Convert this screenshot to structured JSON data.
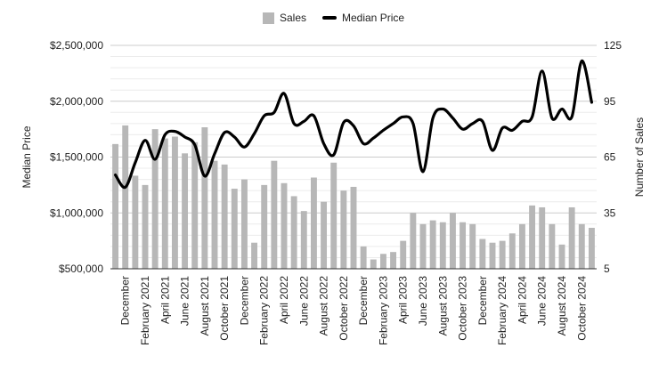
{
  "chart_data": {
    "type": "bar+line",
    "legend": {
      "position": "top",
      "entries": [
        "Sales",
        "Median Price"
      ]
    },
    "colors": {
      "sales": "#b7b7b7",
      "median_price": "#000000",
      "grid": "#d9d9d9"
    },
    "y_left": {
      "label": "Median Price",
      "range": [
        500000,
        2500000
      ],
      "ticks": [
        "$500,000",
        "$1,000,000",
        "$1,500,000",
        "$2,000,000",
        "$2,500,000"
      ],
      "tick_values": [
        500000,
        1000000,
        1500000,
        2000000,
        2500000
      ]
    },
    "y_right": {
      "label": "Number of Sales",
      "range": [
        5,
        125
      ],
      "ticks": [
        "5",
        "35",
        "65",
        "95",
        "125"
      ],
      "tick_values": [
        5,
        35,
        65,
        95,
        125
      ]
    },
    "x_tick_labels": [
      {
        "index": 1,
        "label": "December"
      },
      {
        "index": 3,
        "label": "February  2021"
      },
      {
        "index": 5,
        "label": "April 2021"
      },
      {
        "index": 7,
        "label": "June  2021"
      },
      {
        "index": 9,
        "label": "August  2021"
      },
      {
        "index": 11,
        "label": "October 2021"
      },
      {
        "index": 13,
        "label": "December"
      },
      {
        "index": 15,
        "label": "February 2022"
      },
      {
        "index": 17,
        "label": "April 2022"
      },
      {
        "index": 19,
        "label": "June  2022"
      },
      {
        "index": 21,
        "label": "August 2022"
      },
      {
        "index": 23,
        "label": "October 2022"
      },
      {
        "index": 25,
        "label": "December"
      },
      {
        "index": 27,
        "label": "February 2023"
      },
      {
        "index": 29,
        "label": "April 2023"
      },
      {
        "index": 31,
        "label": "June 2023"
      },
      {
        "index": 33,
        "label": "August 2023"
      },
      {
        "index": 35,
        "label": "October 2023"
      },
      {
        "index": 37,
        "label": "December"
      },
      {
        "index": 39,
        "label": "February 2024"
      },
      {
        "index": 41,
        "label": "April 2024"
      },
      {
        "index": 43,
        "label": "June 2024"
      },
      {
        "index": 45,
        "label": "August 2024"
      },
      {
        "index": 47,
        "label": "October 2024"
      }
    ],
    "series": [
      {
        "name": "Sales",
        "type": "bar",
        "axis": "right",
        "values": [
          72,
          82,
          55,
          50,
          80,
          75,
          76,
          67,
          73,
          81,
          63,
          61,
          48,
          53,
          19,
          50,
          63,
          51,
          44,
          36,
          54,
          41,
          62,
          47,
          49,
          17,
          10,
          13,
          14,
          20,
          35,
          29,
          31,
          30,
          35,
          30,
          29,
          21,
          19,
          20,
          24,
          29,
          39,
          38,
          29,
          18,
          38,
          29,
          27
        ]
      },
      {
        "name": "Median Price",
        "type": "line",
        "axis": "left",
        "values": [
          1340000,
          1230000,
          1450000,
          1650000,
          1480000,
          1700000,
          1730000,
          1680000,
          1610000,
          1330000,
          1530000,
          1720000,
          1680000,
          1590000,
          1710000,
          1870000,
          1900000,
          2070000,
          1800000,
          1820000,
          1870000,
          1620000,
          1520000,
          1810000,
          1780000,
          1620000,
          1670000,
          1740000,
          1800000,
          1860000,
          1800000,
          1370000,
          1850000,
          1930000,
          1850000,
          1750000,
          1800000,
          1820000,
          1560000,
          1760000,
          1740000,
          1820000,
          1860000,
          2270000,
          1850000,
          1930000,
          1860000,
          2360000,
          1990000
        ]
      }
    ]
  }
}
